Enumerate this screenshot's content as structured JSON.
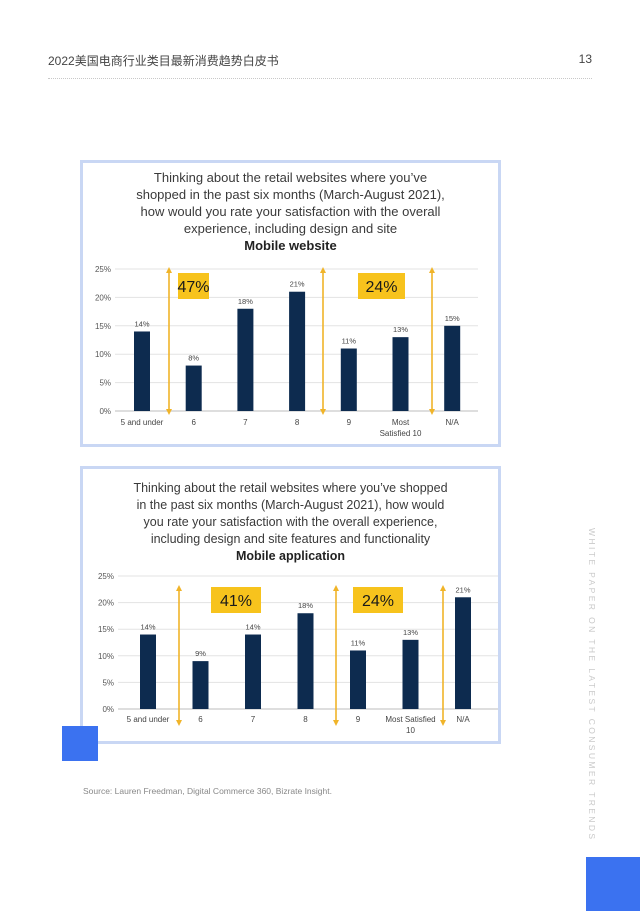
{
  "header": {
    "title": "2022美国电商行业类目最新消费趋势白皮书",
    "page": "13"
  },
  "charts": [
    {
      "title_lines": [
        "Thinking about the retail websites where you’ve",
        "shopped in the past six months (March-August 2021),",
        "how would you rate your satisfaction with the overall",
        "experience, including design and site"
      ],
      "subtitle": "Mobile website",
      "chart_data": {
        "type": "bar",
        "categories": [
          "5 and under",
          "6",
          "7",
          "8",
          "9",
          "Most Satisfied 10",
          "N/A"
        ],
        "category_label_lines": [
          [
            "5 and under"
          ],
          [
            "6"
          ],
          [
            "7"
          ],
          [
            "8"
          ],
          [
            "9"
          ],
          [
            "Most",
            "Satisfied 10"
          ],
          [
            "N/A"
          ]
        ],
        "values": [
          14,
          8,
          18,
          21,
          11,
          13,
          15
        ],
        "data_labels": [
          "14%",
          "8%",
          "18%",
          "21%",
          "11%",
          "13%",
          "15%"
        ],
        "ylim": [
          0,
          25
        ],
        "yticks": [
          "0%",
          "5%",
          "10%",
          "15%",
          "20%",
          "25%"
        ],
        "grid": true,
        "bar_color": "#0d2b4f",
        "annotations": [
          {
            "text": "47%",
            "spans_categories": [
              "6",
              "7",
              "8"
            ]
          },
          {
            "text": "24%",
            "spans_categories": [
              "9",
              "Most Satisfied 10"
            ]
          }
        ]
      }
    },
    {
      "title_lines": [
        "Thinking about the retail websites where you’ve shopped",
        "in the past six months (March-August 2021), how would",
        "you rate your satisfaction with the overall experience,",
        "including design and site features and functionality"
      ],
      "subtitle": "Mobile application",
      "chart_data": {
        "type": "bar",
        "categories": [
          "5 and under",
          "6",
          "7",
          "8",
          "9",
          "Most Satisfied 10",
          "N/A"
        ],
        "category_label_lines": [
          [
            "5 and under"
          ],
          [
            "6"
          ],
          [
            "7"
          ],
          [
            "8"
          ],
          [
            "9"
          ],
          [
            "Most Satisfied",
            "10"
          ],
          [
            "N/A"
          ]
        ],
        "values": [
          14,
          9,
          14,
          18,
          11,
          13,
          21
        ],
        "data_labels": [
          "14%",
          "9%",
          "14%",
          "18%",
          "11%",
          "13%",
          "21%"
        ],
        "ylim": [
          0,
          25
        ],
        "yticks": [
          "0%",
          "5%",
          "10%",
          "15%",
          "20%",
          "25%"
        ],
        "grid": true,
        "bar_color": "#0d2b4f",
        "annotations": [
          {
            "text": "41%",
            "spans_categories": [
              "6",
              "7",
              "8"
            ]
          },
          {
            "text": "24%",
            "spans_categories": [
              "9",
              "Most Satisfied 10"
            ]
          }
        ]
      }
    }
  ],
  "colors": {
    "accent_blue": "#3b72f0",
    "annotation_fill": "#f7c31d",
    "arrow": "#f0b429",
    "card_border": "#c9d7f4"
  },
  "source": "Source: Lauren Freedman, Digital Commerce 360, Bizrate Insight.",
  "side_text": "WHITE PAPER ON THE LATEST CONSUMER TRENDS"
}
